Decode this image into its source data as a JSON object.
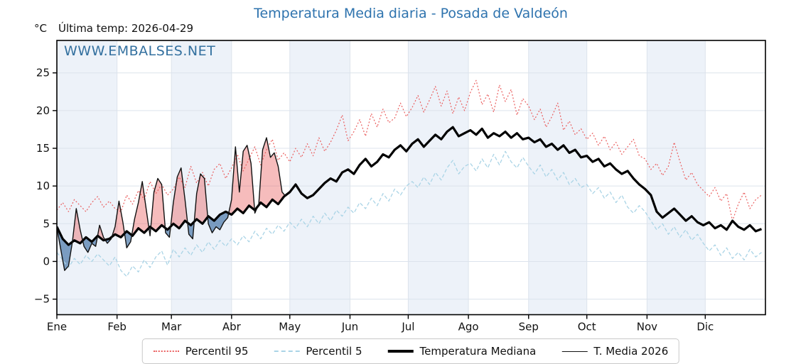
{
  "header": {
    "title": "Temperatura Media diaria - Posada de Valdeón",
    "unit_label": "°C",
    "last_temp_label": "Última temp: 2026-04-29"
  },
  "watermark": {
    "text": "WWW.EMBALSES.NET"
  },
  "colors": {
    "title_blue": "#2e73ae",
    "watermark_blue": "#33709f",
    "p95_red": "#ea5f5f",
    "p5_lightblue": "#aad4e6",
    "median_black": "#000000",
    "t2026_black": "#111111",
    "fill_above": "rgba(235,106,106,0.45)",
    "fill_below": "rgba(52,104,158,0.62)",
    "month_band": "#edf2f9",
    "gridline": "#dce3ec",
    "axis": "#000000"
  },
  "chart_data": {
    "type": "line",
    "title": "Temperatura Media diaria - Posada de Valdeón",
    "xlabel": "",
    "ylabel": "°C",
    "grid": true,
    "legend_position": "bottom-center",
    "ylim": [
      -7.06,
      29.3
    ],
    "y_tick_values": [
      -5,
      0,
      5,
      10,
      15,
      20,
      25
    ],
    "y_tick_labels": [
      "−5",
      "0",
      "5",
      "10",
      "15",
      "20",
      "25"
    ],
    "x_tick_labels": [
      "Ene",
      "Feb",
      "Mar",
      "Abr",
      "May",
      "Jun",
      "Jul",
      "Ago",
      "Sep",
      "Oct",
      "Nov",
      "Dic"
    ],
    "month_start_days": [
      0,
      31,
      59,
      90,
      120,
      151,
      181,
      212,
      243,
      273,
      304,
      334
    ],
    "days_in_year": 365,
    "x_unit": "day_of_year",
    "shaded_month_indices": [
      0,
      2,
      4,
      6,
      8,
      10
    ],
    "fill_between": {
      "upper": "T. Media 2026",
      "lower": "Temperatura Mediana",
      "above_color": "rgba(235,106,106,0.45)",
      "below_color": "rgba(52,104,158,0.62)"
    },
    "series": [
      {
        "name": "Percentil 95",
        "color": "#ea5f5f",
        "line_style": "dotted",
        "line_width": 1.2,
        "step": 3,
        "values": [
          6.8,
          7.8,
          6.6,
          8.2,
          7.4,
          6.6,
          7.8,
          8.6,
          7.2,
          8.0,
          7.0,
          6.6,
          8.8,
          7.6,
          9.4,
          8.2,
          10.6,
          9.0,
          10.2,
          8.8,
          9.6,
          11.2,
          9.8,
          12.6,
          10.4,
          11.8,
          10.0,
          12.2,
          13.0,
          11.0,
          12.4,
          14.2,
          12.0,
          13.6,
          15.2,
          12.8,
          14.8,
          16.2,
          13.4,
          14.4,
          13.2,
          15.0,
          13.8,
          15.6,
          14.0,
          16.4,
          14.6,
          15.8,
          17.4,
          19.4,
          16.0,
          17.2,
          18.8,
          16.6,
          19.6,
          17.8,
          20.2,
          18.4,
          19.0,
          21.0,
          19.2,
          20.4,
          22.0,
          19.8,
          21.4,
          23.2,
          20.6,
          22.6,
          19.6,
          21.8,
          20.0,
          22.4,
          24.0,
          20.8,
          22.2,
          19.8,
          23.4,
          21.2,
          22.8,
          19.4,
          21.6,
          20.6,
          18.8,
          20.2,
          17.8,
          19.2,
          21.0,
          17.4,
          18.6,
          16.8,
          17.6,
          16.2,
          17.0,
          15.4,
          16.6,
          14.8,
          15.8,
          14.2,
          15.2,
          16.2,
          14.0,
          13.6,
          12.2,
          13.0,
          11.4,
          12.6,
          15.8,
          13.2,
          10.8,
          11.8,
          10.2,
          9.4,
          8.6,
          9.8,
          8.0,
          9.0,
          5.4,
          7.6,
          9.2,
          7.0,
          8.2,
          8.8
        ]
      },
      {
        "name": "Percentil 5",
        "color": "#aad4e6",
        "line_style": "dashed",
        "line_width": 1.3,
        "step": 3,
        "values": [
          1.2,
          0.2,
          -0.8,
          0.4,
          -0.4,
          0.8,
          0.0,
          1.0,
          0.2,
          -0.6,
          0.6,
          -1.2,
          -2.0,
          -0.6,
          -1.4,
          0.2,
          -0.8,
          0.6,
          1.4,
          -0.5,
          1.6,
          0.6,
          1.8,
          0.8,
          2.2,
          1.2,
          2.6,
          1.6,
          2.8,
          2.0,
          3.0,
          2.2,
          3.4,
          2.6,
          4.0,
          3.0,
          4.4,
          3.6,
          4.8,
          4.0,
          5.2,
          4.4,
          5.6,
          4.6,
          6.0,
          5.0,
          6.4,
          5.4,
          6.8,
          6.0,
          7.2,
          6.4,
          7.8,
          7.0,
          8.4,
          7.4,
          9.0,
          8.0,
          9.6,
          8.8,
          10.0,
          10.6,
          9.8,
          11.2,
          10.2,
          11.8,
          10.8,
          12.4,
          13.4,
          11.6,
          12.6,
          13.0,
          12.0,
          13.6,
          12.4,
          14.2,
          12.8,
          14.6,
          13.2,
          12.4,
          13.8,
          12.6,
          11.6,
          12.8,
          11.2,
          12.2,
          10.8,
          11.8,
          10.2,
          11.0,
          9.8,
          10.2,
          9.0,
          9.8,
          8.4,
          9.2,
          7.8,
          8.8,
          7.2,
          6.4,
          7.4,
          6.6,
          5.4,
          4.2,
          5.0,
          3.6,
          4.6,
          3.2,
          4.2,
          2.8,
          3.6,
          2.4,
          1.4,
          2.2,
          0.8,
          1.8,
          0.4,
          1.2,
          0.2,
          1.6,
          0.6,
          1.2
        ]
      },
      {
        "name": "Temperatura Mediana",
        "color": "#000000",
        "line_style": "solid",
        "line_width": 3.2,
        "step": 3,
        "values": [
          4.6,
          3.0,
          2.2,
          2.8,
          2.4,
          3.2,
          2.6,
          3.4,
          2.8,
          3.0,
          3.6,
          3.2,
          4.0,
          3.4,
          4.4,
          3.8,
          4.6,
          4.0,
          4.8,
          4.2,
          5.0,
          4.4,
          5.4,
          4.8,
          5.6,
          5.0,
          6.0,
          5.4,
          6.2,
          6.6,
          6.2,
          7.0,
          6.4,
          7.4,
          6.8,
          7.8,
          7.2,
          8.2,
          7.6,
          8.6,
          9.2,
          10.2,
          9.0,
          8.4,
          8.8,
          9.6,
          10.4,
          11.0,
          10.6,
          11.8,
          12.2,
          11.6,
          12.8,
          13.6,
          12.6,
          13.2,
          14.2,
          13.8,
          14.8,
          15.4,
          14.6,
          15.6,
          16.2,
          15.2,
          16.0,
          16.8,
          16.2,
          17.2,
          17.8,
          16.6,
          17.0,
          17.4,
          16.8,
          17.6,
          16.4,
          17.0,
          16.6,
          17.2,
          16.4,
          17.0,
          16.2,
          16.4,
          15.8,
          16.2,
          15.2,
          15.6,
          14.8,
          15.4,
          14.4,
          14.8,
          13.8,
          14.0,
          13.2,
          13.6,
          12.6,
          13.0,
          12.2,
          11.6,
          12.0,
          11.0,
          10.2,
          9.6,
          8.8,
          6.6,
          5.8,
          6.4,
          7.0,
          6.2,
          5.4,
          6.0,
          5.2,
          4.8,
          5.2,
          4.4,
          4.8,
          4.2,
          5.4,
          4.6,
          4.2,
          4.8,
          4.0,
          4.3
        ]
      },
      {
        "name": "T. Media 2026",
        "color": "#111111",
        "line_style": "solid",
        "line_width": 1.4,
        "step": 2,
        "end_day": 118,
        "values": [
          4.5,
          1.6,
          -1.2,
          -0.6,
          2.6,
          7.0,
          4.2,
          2.0,
          1.2,
          2.4,
          2.0,
          4.8,
          3.2,
          2.4,
          3.0,
          4.6,
          8.0,
          5.2,
          1.8,
          2.6,
          5.6,
          7.8,
          10.6,
          7.0,
          3.4,
          9.2,
          11.0,
          10.2,
          3.8,
          3.2,
          7.8,
          11.2,
          12.4,
          8.2,
          3.6,
          3.0,
          9.0,
          11.6,
          11.0,
          5.0,
          3.8,
          4.6,
          4.2,
          5.2,
          5.8,
          8.2,
          15.2,
          9.2,
          14.6,
          15.4,
          13.0,
          6.4,
          7.6,
          14.8,
          16.4,
          13.8,
          14.4,
          12.6,
          9.2,
          8.6
        ]
      }
    ]
  },
  "legend": {
    "items": [
      "Percentil 95",
      "Percentil 5",
      "Temperatura Mediana",
      "T. Media 2026"
    ]
  }
}
